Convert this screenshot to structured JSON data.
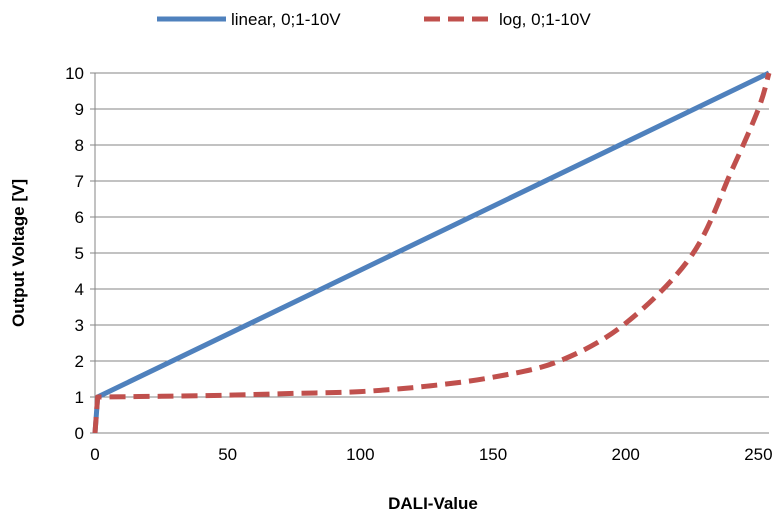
{
  "chart_data": {
    "type": "line",
    "title": "",
    "xlabel": "DALI-Value",
    "ylabel": "Output Voltage [V]",
    "xlim": [
      0,
      254
    ],
    "ylim": [
      0,
      10
    ],
    "x_ticks": [
      "0",
      "50",
      "100",
      "150",
      "200",
      "250"
    ],
    "y_ticks": [
      "0",
      "1",
      "2",
      "3",
      "4",
      "5",
      "6",
      "7",
      "8",
      "9",
      "10"
    ],
    "grid": "horizontal",
    "legend_position": "top",
    "series": [
      {
        "name": "linear, 0;1-10V",
        "color": "#4f81bd",
        "style": "solid",
        "x": [
          0,
          1,
          254
        ],
        "y": [
          0,
          1,
          10
        ]
      },
      {
        "name": "log, 0;1-10V",
        "color": "#c0504d",
        "style": "dashed",
        "x": [
          0,
          1,
          25,
          50,
          75,
          100,
          125,
          150,
          175,
          200,
          225,
          240,
          250,
          254
        ],
        "y": [
          0,
          1,
          1.02,
          1.05,
          1.1,
          1.15,
          1.3,
          1.55,
          2.0,
          3.05,
          4.95,
          7.3,
          9.0,
          10
        ]
      }
    ]
  }
}
